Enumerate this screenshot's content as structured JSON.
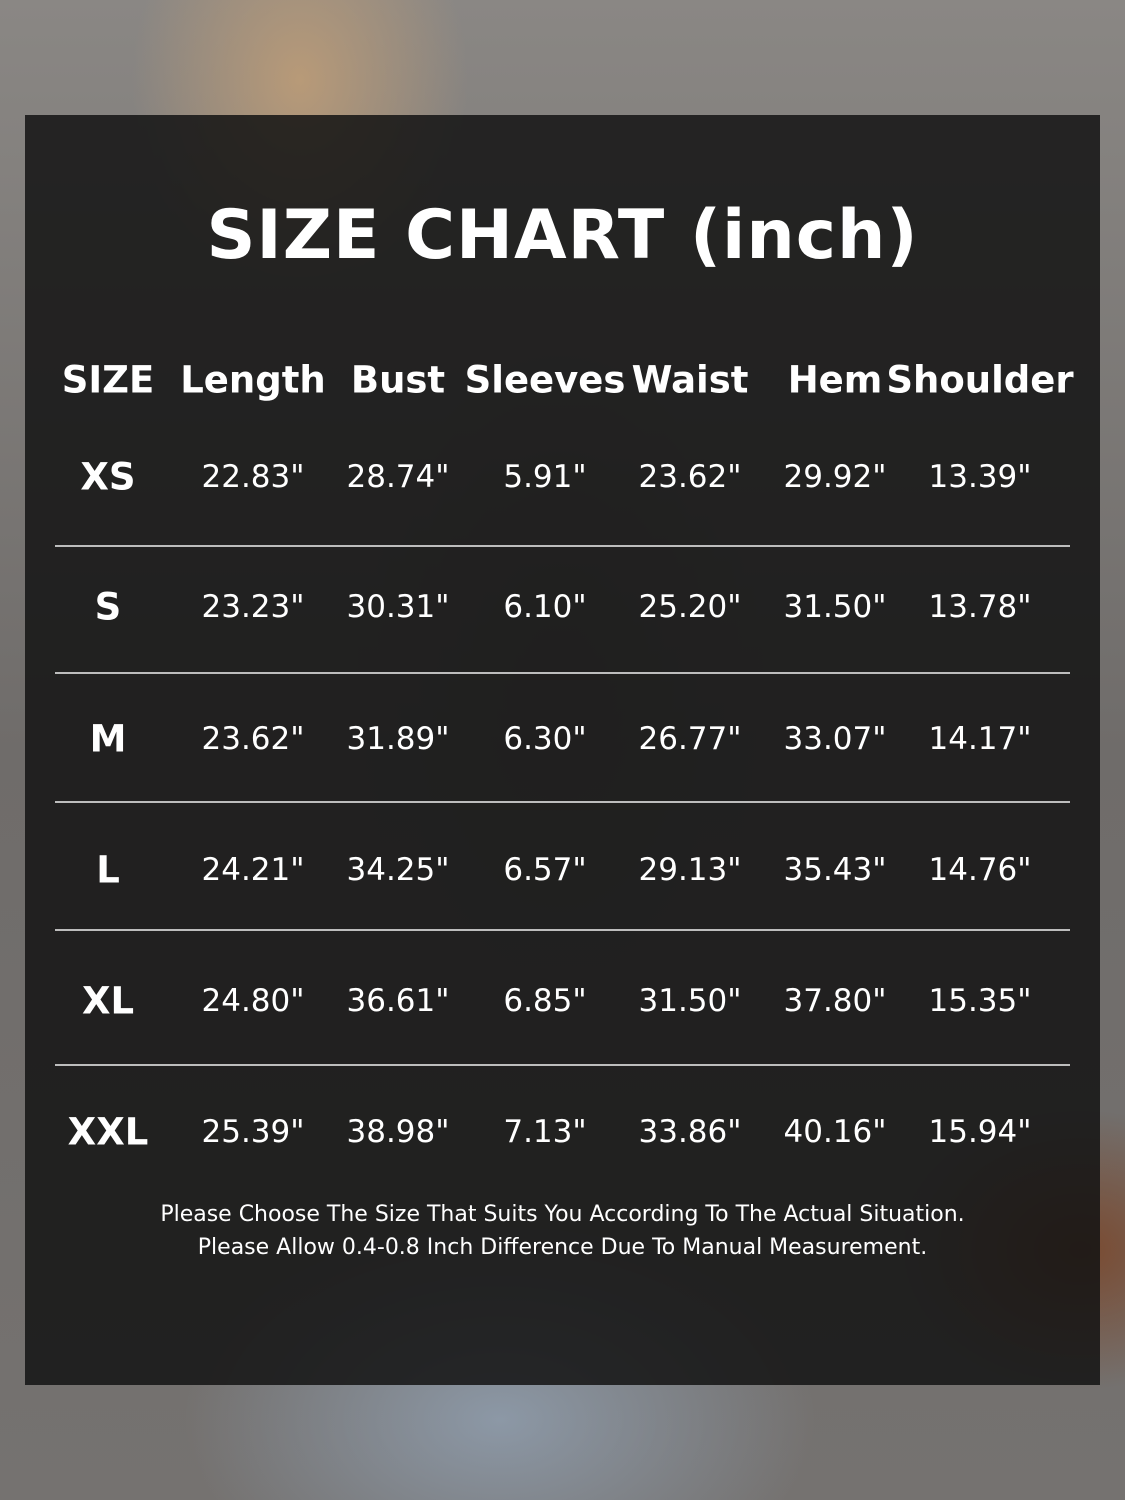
{
  "title": "SIZE CHART (inch)",
  "headers": [
    "SIZE",
    "Length",
    "Bust",
    "Sleeves",
    "Waist",
    "Hem",
    "Shoulder"
  ],
  "rows": [
    {
      "size": "XS",
      "values": [
        "22.83\"",
        "28.74\"",
        "5.91\"",
        "23.62\"",
        "29.92\"",
        "13.39\""
      ]
    },
    {
      "size": "S",
      "values": [
        "23.23\"",
        "30.31\"",
        "6.10\"",
        "25.20\"",
        "31.50\"",
        "13.78\""
      ]
    },
    {
      "size": "M",
      "values": [
        "23.62\"",
        "31.89\"",
        "6.30\"",
        "26.77\"",
        "33.07\"",
        "14.17\""
      ]
    },
    {
      "size": "L",
      "values": [
        "24.21\"",
        "34.25\"",
        "6.57\"",
        "29.13\"",
        "35.43\"",
        "14.76\""
      ]
    },
    {
      "size": "XL",
      "values": [
        "24.80\"",
        "36.61\"",
        "6.85\"",
        "31.50\"",
        "37.80\"",
        "15.35\""
      ]
    },
    {
      "size": "XXL",
      "values": [
        "25.39\"",
        "38.98\"",
        "7.13\"",
        "33.86\"",
        "40.16\"",
        "15.94\""
      ]
    }
  ],
  "notes": [
    "Please Choose The Size That Suits You According To The Actual Situation.",
    "Please Allow 0.4-0.8 Inch Difference Due To Manual Measurement."
  ]
}
